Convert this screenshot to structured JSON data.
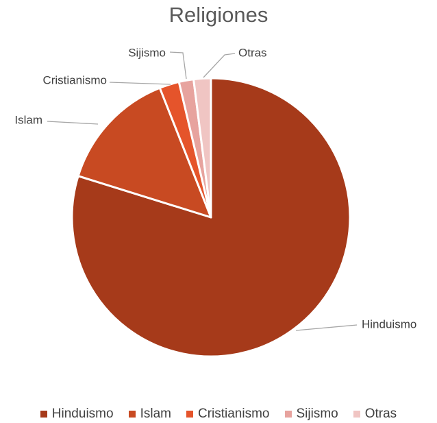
{
  "chart_data": {
    "type": "pie",
    "title": "Religiones",
    "categories": [
      "Hinduismo",
      "Islam",
      "Cristianismo",
      "Sijismo",
      "Otras"
    ],
    "values": [
      79.8,
      14.2,
      2.3,
      1.7,
      2.0
    ],
    "colors": [
      "#a63a1a",
      "#c84a22",
      "#e5542b",
      "#e7a39e",
      "#f0c5c3"
    ],
    "legend_position": "bottom",
    "start_angle_deg": 0,
    "direction": "clockwise"
  }
}
